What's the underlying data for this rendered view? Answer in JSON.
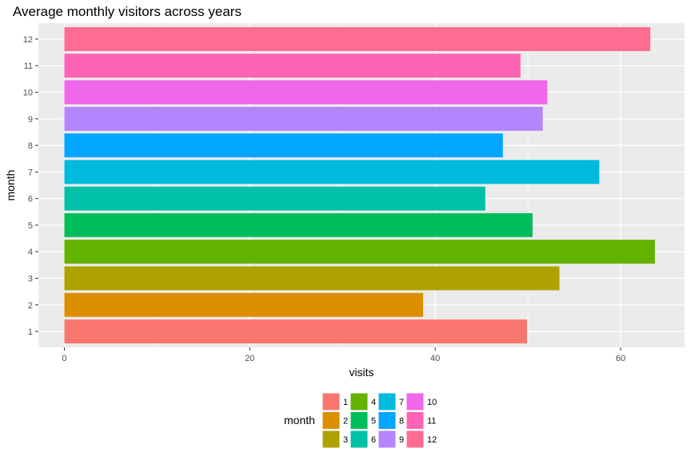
{
  "chart_data": {
    "type": "bar",
    "orientation": "horizontal",
    "title": "Average monthly visitors across years",
    "xlabel": "visits",
    "ylabel": "month",
    "categories": [
      "1",
      "2",
      "3",
      "4",
      "5",
      "6",
      "7",
      "8",
      "9",
      "10",
      "11",
      "12"
    ],
    "values": [
      49.9,
      38.7,
      53.4,
      63.7,
      50.5,
      45.4,
      57.7,
      47.3,
      51.6,
      52.1,
      49.2,
      63.2
    ],
    "xlim": [
      -2.8,
      66.9
    ],
    "xticks": [
      0,
      20,
      40,
      60
    ],
    "xtick_labels": [
      "0",
      "20",
      "40",
      "60"
    ],
    "grid": true,
    "panel_background": "#EBEBEB",
    "grid_color": "#FFFFFF",
    "legend": {
      "title": "month",
      "placement": "bottom",
      "columns": 4,
      "rows": 3,
      "entries": [
        "1",
        "2",
        "3",
        "4",
        "5",
        "6",
        "7",
        "8",
        "9",
        "10",
        "11",
        "12"
      ]
    },
    "colors": [
      "#F8766D",
      "#DB8E00",
      "#AEA200",
      "#64B200",
      "#00BD5C",
      "#00C1A7",
      "#00BADE",
      "#00A6FF",
      "#B385FF",
      "#EF67EB",
      "#FF63B6",
      "#FF6C91"
    ]
  }
}
